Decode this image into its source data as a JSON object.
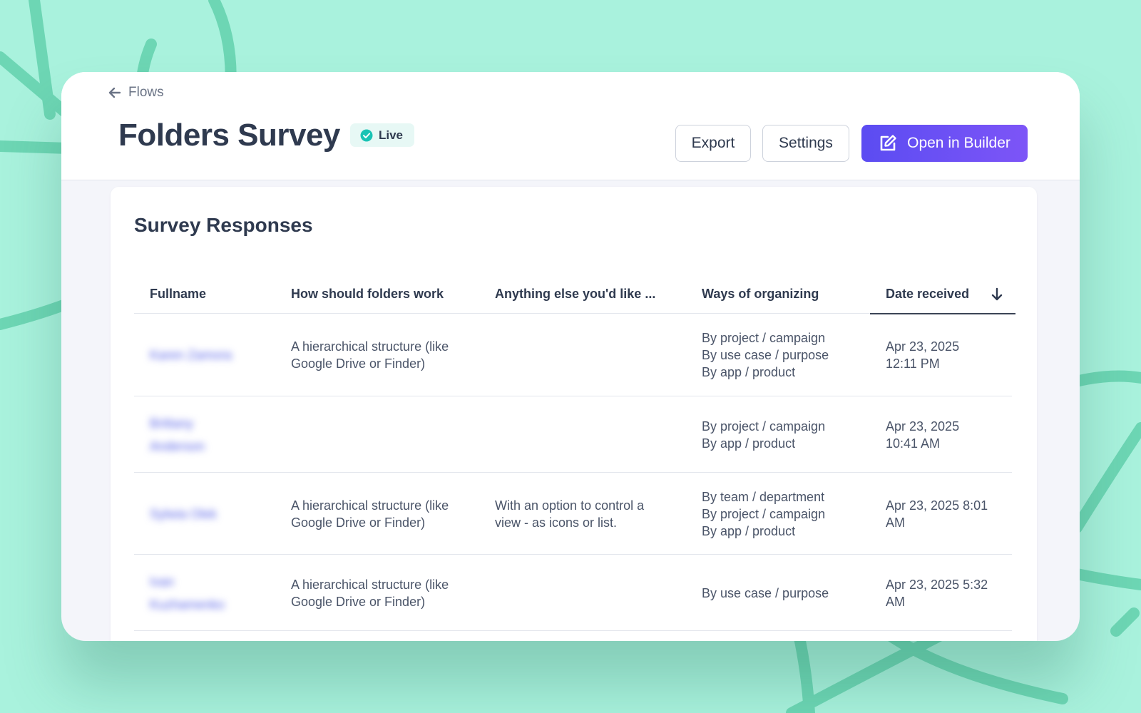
{
  "colors": {
    "page_background": "#a9f2dd",
    "decor_stroke": "#6dd6b4",
    "accent_button": "#5b4cf2",
    "live_check": "#19c3b4",
    "blurred_name": "#5560e8"
  },
  "header": {
    "back_icon": "arrow-left-icon",
    "back_label": "Flows",
    "title": "Folders Survey",
    "status_icon": "check-circle-icon",
    "status_label": "Live",
    "export_label": "Export",
    "settings_label": "Settings",
    "builder_icon": "edit-icon",
    "builder_label": "Open in Builder"
  },
  "responses": {
    "title": "Survey Responses",
    "columns": [
      "Fullname",
      "How should folders work",
      "Anything else you'd like ...",
      "Ways of organizing",
      "Date received"
    ],
    "sort_icon": "arrow-down-icon",
    "rows": [
      {
        "name": [
          "Karen Zamora"
        ],
        "folders": [
          "A hierarchical structure (like",
          "Google Drive or Finder)"
        ],
        "other": [],
        "ways": [
          "By project / campaign",
          "By use case / purpose",
          "By app / product"
        ],
        "date": [
          "Apr 23, 2025",
          "12:11 PM"
        ]
      },
      {
        "name": [
          "Brittany",
          "Anderson"
        ],
        "folders": [],
        "other": [],
        "ways": [
          "By project / campaign",
          "By app / product"
        ],
        "date": [
          "Apr 23, 2025",
          "10:41 AM"
        ]
      },
      {
        "name": [
          "Sylwia Olek"
        ],
        "folders": [
          "A hierarchical structure (like",
          "Google Drive or Finder)"
        ],
        "other": [
          "With an option to control a",
          "view - as icons or list."
        ],
        "ways": [
          "By team / department",
          "By project / campaign",
          "By app / product"
        ],
        "date": [
          "Apr 23, 2025 8:01",
          "AM"
        ]
      },
      {
        "name": [
          "Ivan",
          "Kuzhamenko"
        ],
        "folders": [
          "A hierarchical structure (like",
          "Google Drive or Finder)"
        ],
        "other": [],
        "ways": [
          "By use case / purpose"
        ],
        "date": [
          "Apr 23, 2025 5:32",
          "AM"
        ]
      }
    ]
  }
}
